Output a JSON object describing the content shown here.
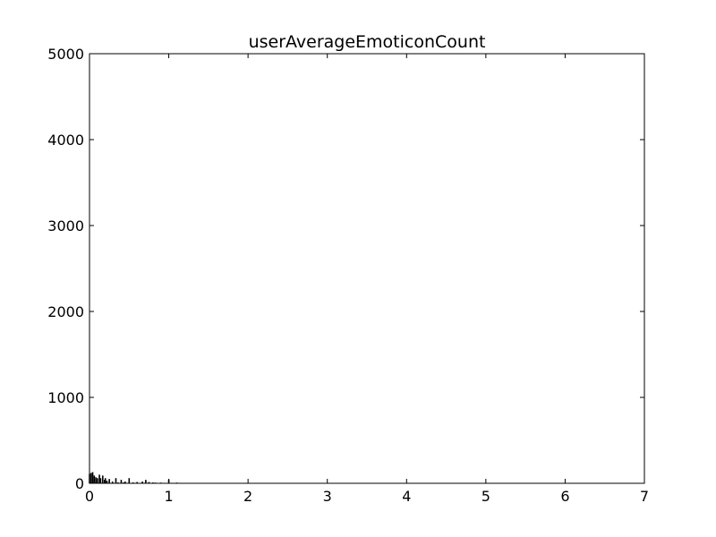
{
  "chart_data": {
    "type": "bar",
    "subtype": "histogram",
    "title": "userAverageEmoticonCount",
    "xlabel": "",
    "ylabel": "",
    "xlim": [
      0,
      7
    ],
    "ylim": [
      0,
      5000
    ],
    "x_ticks": [
      0,
      1,
      2,
      3,
      4,
      5,
      6,
      7
    ],
    "y_ticks": [
      0,
      1000,
      2000,
      3000,
      4000,
      5000
    ],
    "x_tick_labels": [
      "0",
      "1",
      "2",
      "3",
      "4",
      "5",
      "6",
      "7"
    ],
    "y_tick_labels": [
      "0",
      "1000",
      "2000",
      "3000",
      "4000",
      "5000"
    ],
    "bar_color": "#000000",
    "grid": false,
    "legend": "none",
    "bins": [
      {
        "x": 0.0,
        "value": 110
      },
      {
        "x": 0.02,
        "value": 120
      },
      {
        "x": 0.04,
        "value": 130
      },
      {
        "x": 0.06,
        "value": 90
      },
      {
        "x": 0.08,
        "value": 70
      },
      {
        "x": 0.1,
        "value": 60
      },
      {
        "x": 0.125,
        "value": 100
      },
      {
        "x": 0.14,
        "value": 60
      },
      {
        "x": 0.167,
        "value": 90
      },
      {
        "x": 0.19,
        "value": 40
      },
      {
        "x": 0.2,
        "value": 60
      },
      {
        "x": 0.22,
        "value": 30
      },
      {
        "x": 0.25,
        "value": 50
      },
      {
        "x": 0.29,
        "value": 20
      },
      {
        "x": 0.333,
        "value": 60
      },
      {
        "x": 0.36,
        "value": 10
      },
      {
        "x": 0.4,
        "value": 40
      },
      {
        "x": 0.43,
        "value": 10
      },
      {
        "x": 0.45,
        "value": 20
      },
      {
        "x": 0.5,
        "value": 60
      },
      {
        "x": 0.55,
        "value": 10
      },
      {
        "x": 0.6,
        "value": 15
      },
      {
        "x": 0.667,
        "value": 20
      },
      {
        "x": 0.71,
        "value": 40
      },
      {
        "x": 0.75,
        "value": 15
      },
      {
        "x": 0.8,
        "value": 10
      },
      {
        "x": 0.83,
        "value": 8
      },
      {
        "x": 0.9,
        "value": 8
      },
      {
        "x": 1.0,
        "value": 45
      },
      {
        "x": 1.1,
        "value": 8
      },
      {
        "x": 1.2,
        "value": 5
      },
      {
        "x": 1.33,
        "value": 5
      },
      {
        "x": 1.5,
        "value": 3
      },
      {
        "x": 2.0,
        "value": 2
      }
    ]
  }
}
